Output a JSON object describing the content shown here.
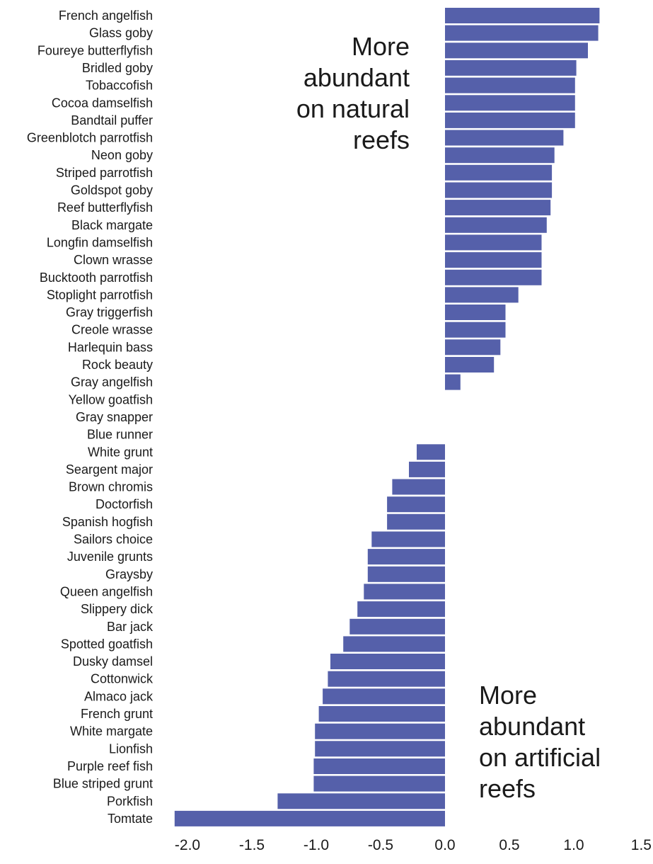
{
  "chart_data": {
    "type": "bar",
    "orientation": "horizontal",
    "bar_color": "#5560aa",
    "title": "",
    "xlabel": "",
    "ylabel": "",
    "xlim": [
      -2.1,
      1.5
    ],
    "x_ticks": [
      "-2.0",
      "-1.5",
      "-1.0",
      "-0.5",
      "0.0",
      "0.5",
      "1.0",
      "1.5"
    ],
    "x_tick_values": [
      -2.0,
      -1.5,
      -1.0,
      -0.5,
      0.0,
      0.5,
      1.0,
      1.5
    ],
    "grid": false,
    "categories": [
      "French angelfish",
      "Glass goby",
      "Foureye butterflyfish",
      "Bridled goby",
      "Tobaccofish",
      "Cocoa damselfish",
      "Bandtail puffer",
      "Greenblotch parrotfish",
      "Neon goby",
      "Striped parrotfish",
      "Goldspot goby",
      "Reef butterflyfish",
      "Black margate",
      "Longfin damselfish",
      "Clown wrasse",
      "Bucktooth parrotfish",
      "Stoplight parrotfish",
      "Gray triggerfish",
      "Creole wrasse",
      "Harlequin bass",
      "Rock beauty",
      "Gray angelfish",
      "Yellow goatfish",
      "Gray snapper",
      "Blue runner",
      "White grunt",
      "Seargent major",
      "Brown chromis",
      "Doctorfish",
      "Spanish hogfish",
      "Sailors choice",
      "Juvenile grunts",
      "Graysby",
      "Queen angelfish",
      "Slippery dick",
      "Bar jack",
      "Spotted goatfish",
      "Dusky damsel",
      "Cottonwick",
      "Almaco jack",
      "French grunt",
      "White margate",
      "Lionfish",
      "Purple reef fish",
      "Blue striped grunt",
      "Porkfish",
      "Tomtate"
    ],
    "values": [
      1.2,
      1.19,
      1.11,
      1.02,
      1.01,
      1.01,
      1.01,
      0.92,
      0.85,
      0.83,
      0.83,
      0.82,
      0.79,
      0.75,
      0.75,
      0.75,
      0.57,
      0.47,
      0.47,
      0.43,
      0.38,
      0.12,
      0.0,
      0.0,
      0.0,
      -0.22,
      -0.28,
      -0.41,
      -0.45,
      -0.45,
      -0.57,
      -0.6,
      -0.6,
      -0.63,
      -0.68,
      -0.74,
      -0.79,
      -0.89,
      -0.91,
      -0.95,
      -0.98,
      -1.01,
      -1.01,
      -1.02,
      -1.02,
      -1.3,
      -2.1
    ],
    "annotations": [
      {
        "id": "natural",
        "lines": [
          "More",
          "abundant",
          "on natural",
          "reefs"
        ],
        "anchor": "end"
      },
      {
        "id": "artificial",
        "lines": [
          "More",
          "abundant",
          "on artificial",
          "reefs"
        ],
        "anchor": "start"
      }
    ]
  }
}
